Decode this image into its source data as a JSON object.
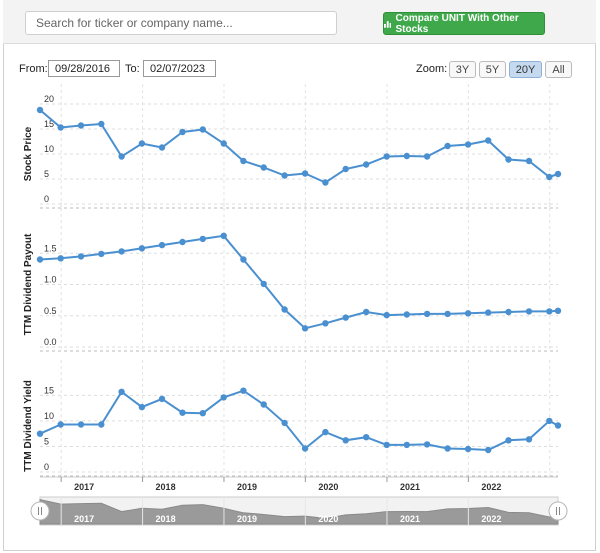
{
  "search": {
    "placeholder": "Search for ticker or company name..."
  },
  "compare_button": {
    "label": "Compare UNIT With Other Stocks",
    "color": "#3ea84a"
  },
  "range": {
    "from_label": "From:",
    "from_value": "09/28/2016",
    "to_label": "To:",
    "to_value": "02/07/2023"
  },
  "zoom": {
    "label": "Zoom:",
    "options": [
      "3Y",
      "5Y",
      "20Y",
      "All"
    ],
    "active": "20Y"
  },
  "navigator": {
    "years": [
      "2017",
      "2018",
      "2019",
      "2020",
      "2021",
      "2022"
    ]
  },
  "chart_data": [
    {
      "type": "line",
      "ylabel": "Stock Price",
      "ylim": [
        0,
        20
      ],
      "yticks": [
        "0",
        "5",
        "10",
        "15",
        "20"
      ],
      "color": "#4a90d0",
      "x_ticks": [
        "2017",
        "2018",
        "2019",
        "2020",
        "2021",
        "2022"
      ],
      "x": [
        "2016-09-28",
        "2016-12-30",
        "2017-03-31",
        "2017-06-30",
        "2017-09-29",
        "2017-12-29",
        "2018-03-29",
        "2018-06-29",
        "2018-09-28",
        "2018-12-31",
        "2019-03-29",
        "2019-06-28",
        "2019-09-30",
        "2019-12-31",
        "2020-03-31",
        "2020-06-30",
        "2020-09-30",
        "2020-12-31",
        "2021-03-31",
        "2021-06-30",
        "2021-09-30",
        "2021-12-31",
        "2022-03-31",
        "2022-06-30",
        "2022-09-30",
        "2022-12-30",
        "2023-02-07"
      ],
      "y": [
        18.8,
        15.3,
        15.7,
        16.0,
        9.5,
        12.1,
        11.3,
        14.4,
        14.9,
        12.1,
        8.6,
        7.3,
        5.7,
        6.1,
        4.3,
        7.0,
        7.9,
        9.5,
        9.6,
        9.5,
        11.6,
        11.9,
        12.7,
        8.9,
        8.6,
        5.4,
        6.0
      ]
    },
    {
      "type": "line",
      "ylabel": "TTM Dividend Payout",
      "ylim": [
        0,
        2.0
      ],
      "yticks": [
        "0.0",
        "0.5",
        "1.0",
        "1.5"
      ],
      "color": "#4a90d0",
      "x_ticks": [
        "2017",
        "2018",
        "2019",
        "2020",
        "2021",
        "2022"
      ],
      "x": [
        "2016-09-28",
        "2016-12-30",
        "2017-03-31",
        "2017-06-30",
        "2017-09-29",
        "2017-12-29",
        "2018-03-29",
        "2018-06-29",
        "2018-09-28",
        "2018-12-31",
        "2019-03-29",
        "2019-06-28",
        "2019-09-30",
        "2019-12-31",
        "2020-03-31",
        "2020-06-30",
        "2020-09-30",
        "2020-12-31",
        "2021-03-31",
        "2021-06-30",
        "2021-09-30",
        "2021-12-31",
        "2022-03-31",
        "2022-06-30",
        "2022-09-30",
        "2022-12-30",
        "2023-02-07"
      ],
      "y": [
        1.4,
        1.42,
        1.45,
        1.49,
        1.53,
        1.58,
        1.63,
        1.68,
        1.73,
        1.78,
        1.4,
        1.01,
        0.6,
        0.3,
        0.38,
        0.47,
        0.56,
        0.51,
        0.52,
        0.53,
        0.53,
        0.54,
        0.55,
        0.56,
        0.57,
        0.57,
        0.58
      ]
    },
    {
      "type": "line",
      "ylabel": "TTM Dividend Yield",
      "ylim": [
        0,
        18
      ],
      "yticks": [
        "0",
        "5",
        "10",
        "15"
      ],
      "color": "#4a90d0",
      "x_ticks": [
        "2017",
        "2018",
        "2019",
        "2020",
        "2021",
        "2022"
      ],
      "x": [
        "2016-09-28",
        "2016-12-30",
        "2017-03-31",
        "2017-06-30",
        "2017-09-29",
        "2017-12-29",
        "2018-03-29",
        "2018-06-29",
        "2018-09-28",
        "2018-12-31",
        "2019-03-29",
        "2019-06-28",
        "2019-09-30",
        "2019-12-31",
        "2020-03-31",
        "2020-06-30",
        "2020-09-30",
        "2020-12-31",
        "2021-03-31",
        "2021-06-30",
        "2021-09-30",
        "2021-12-31",
        "2022-03-31",
        "2022-06-30",
        "2022-09-30",
        "2022-12-30",
        "2023-02-07"
      ],
      "y": [
        7.5,
        9.3,
        9.3,
        9.3,
        15.7,
        12.7,
        14.3,
        11.6,
        11.5,
        14.6,
        15.9,
        13.2,
        9.6,
        4.6,
        7.8,
        6.2,
        6.8,
        5.3,
        5.3,
        5.4,
        4.6,
        4.5,
        4.3,
        6.2,
        6.4,
        10.0,
        9.1
      ]
    }
  ]
}
